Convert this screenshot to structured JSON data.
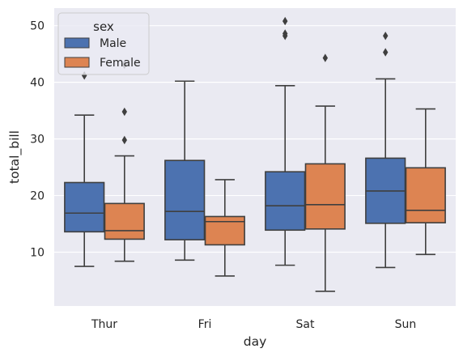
{
  "chart_data": {
    "type": "box",
    "title": "",
    "xlabel": "day",
    "ylabel": "total_bill",
    "categories": [
      "Thur",
      "Fri",
      "Sat",
      "Sun"
    ],
    "ylim": [
      0.5,
      53.1
    ],
    "yticks": [
      10,
      20,
      30,
      40,
      50
    ],
    "grid": true,
    "legend": {
      "title": "sex",
      "placement": "top-left"
    },
    "series": [
      {
        "name": "Male",
        "color": "#4c72b0",
        "boxes": [
          {
            "whisker_low": 7.5,
            "q1": 13.6,
            "median": 16.9,
            "q3": 22.3,
            "whisker_high": 34.2,
            "outliers": [
              41.2
            ]
          },
          {
            "whisker_low": 8.6,
            "q1": 12.2,
            "median": 17.2,
            "q3": 26.2,
            "whisker_high": 40.2,
            "outliers": []
          },
          {
            "whisker_low": 7.7,
            "q1": 13.9,
            "median": 18.2,
            "q3": 24.2,
            "whisker_high": 39.4,
            "outliers": [
              48.2,
              48.6,
              50.8
            ]
          },
          {
            "whisker_low": 7.3,
            "q1": 15.1,
            "median": 20.8,
            "q3": 26.6,
            "whisker_high": 40.6,
            "outliers": [
              45.3,
              48.2
            ]
          }
        ]
      },
      {
        "name": "Female",
        "color": "#dd8452",
        "boxes": [
          {
            "whisker_low": 8.4,
            "q1": 12.3,
            "median": 13.8,
            "q3": 18.6,
            "whisker_high": 27.0,
            "outliers": [
              29.8,
              34.8,
              43.1
            ]
          },
          {
            "whisker_low": 5.8,
            "q1": 11.3,
            "median": 15.4,
            "q3": 16.3,
            "whisker_high": 22.8,
            "outliers": []
          },
          {
            "whisker_low": 3.1,
            "q1": 14.1,
            "median": 18.4,
            "q3": 25.6,
            "whisker_high": 35.8,
            "outliers": [
              44.3
            ]
          },
          {
            "whisker_low": 9.6,
            "q1": 15.2,
            "median": 17.4,
            "q3": 24.9,
            "whisker_high": 35.3,
            "outliers": []
          }
        ]
      }
    ]
  }
}
